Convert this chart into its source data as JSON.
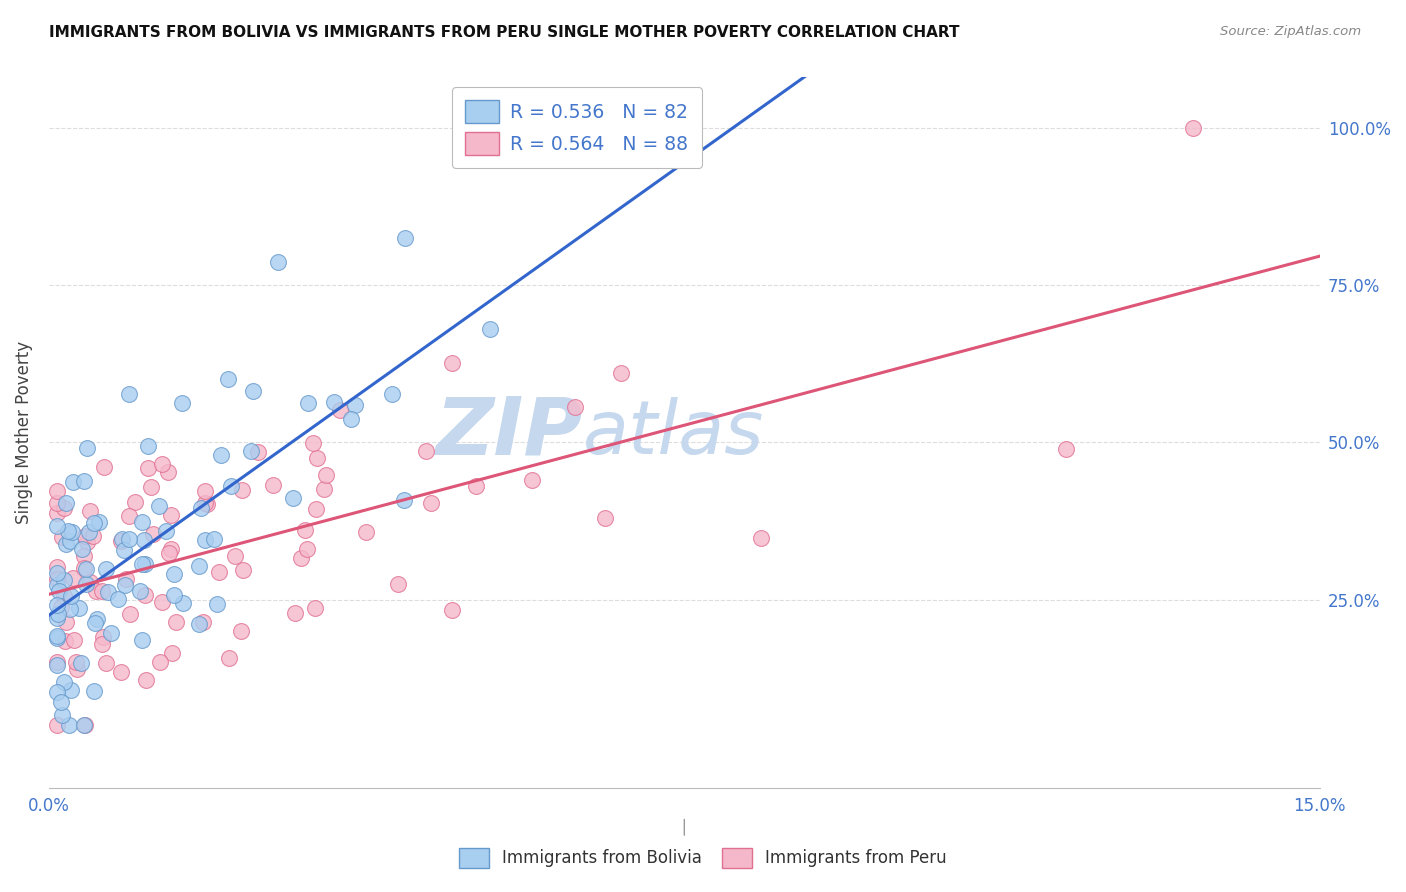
{
  "title": "IMMIGRANTS FROM BOLIVIA VS IMMIGRANTS FROM PERU SINGLE MOTHER POVERTY CORRELATION CHART",
  "source": "Source: ZipAtlas.com",
  "ylabel": "Single Mother Poverty",
  "ytick_labels": [
    "25.0%",
    "50.0%",
    "75.0%",
    "100.0%"
  ],
  "ytick_positions": [
    0.25,
    0.5,
    0.75,
    1.0
  ],
  "xlim": [
    0.0,
    0.15
  ],
  "ylim": [
    -0.05,
    1.08
  ],
  "bolivia_color": "#A8CEF0",
  "peru_color": "#F5B8CB",
  "bolivia_edge": "#6699CC",
  "peru_edge": "#E07090",
  "bolivia_R": 0.536,
  "bolivia_N": 82,
  "peru_R": 0.564,
  "peru_N": 88,
  "bolivia_line_color": "#3366CC",
  "peru_line_color": "#DD5577",
  "legend_label_bolivia": "Immigrants from Bolivia",
  "legend_label_peru": "Immigrants from Peru",
  "watermark_zip": "ZIP",
  "watermark_atlas": "atlas",
  "watermark_color": "#C5D8EE",
  "tick_color": "#4477CC",
  "grid_color": "#DDDDDD",
  "bottom_sep_color": "#AAAAAA"
}
